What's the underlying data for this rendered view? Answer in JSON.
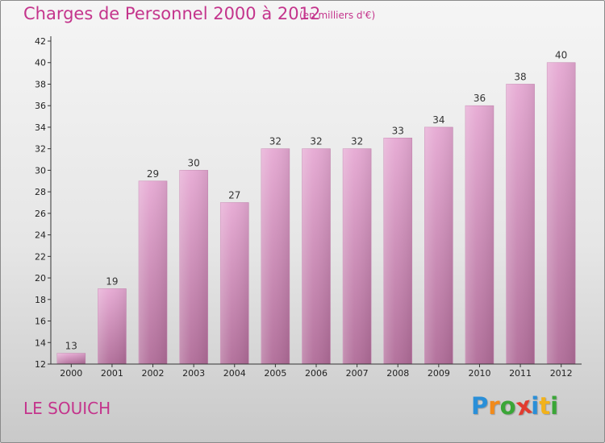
{
  "header": {
    "title": "Charges de Personnel 2000 à 2012",
    "unit": "(en milliers d'€)"
  },
  "footer": {
    "commune": "LE SOUICH",
    "logo_text": "Proxiti",
    "logo_letters": [
      {
        "ch": "P",
        "color": "#2a8fd8"
      },
      {
        "ch": "r",
        "color": "#f28a1a"
      },
      {
        "ch": "o",
        "color": "#3aa637"
      },
      {
        "ch": "x",
        "color": "#e23b2f"
      },
      {
        "ch": "i",
        "color": "#2a8fd8"
      },
      {
        "ch": "t",
        "color": "#f2b21a"
      },
      {
        "ch": "i",
        "color": "#3aa637"
      }
    ]
  },
  "chart_data": {
    "type": "bar",
    "title": "Charges de Personnel 2000 à 2012",
    "categories": [
      "2000",
      "2001",
      "2002",
      "2003",
      "2004",
      "2005",
      "2006",
      "2007",
      "2008",
      "2009",
      "2010",
      "2011",
      "2012"
    ],
    "values": [
      13,
      19,
      29,
      30,
      27,
      32,
      32,
      32,
      33,
      34,
      36,
      38,
      40
    ],
    "ylim": [
      12,
      42
    ],
    "yticks": [
      12,
      14,
      16,
      18,
      20,
      22,
      24,
      26,
      28,
      30,
      32,
      34,
      36,
      38,
      40,
      42
    ],
    "grid": false,
    "bar_color_top": "#e6a9d3",
    "bar_color_bottom": "#b06c98",
    "axis_color": "#333333"
  }
}
